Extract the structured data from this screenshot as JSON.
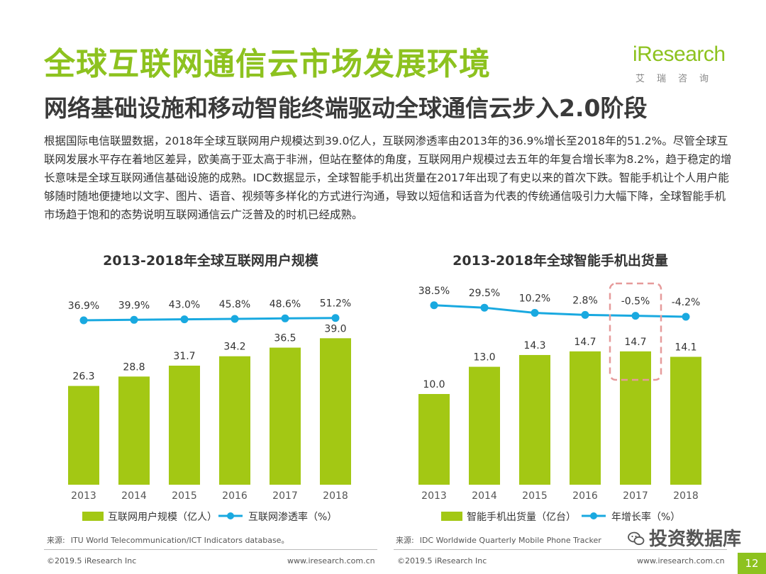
{
  "header": {
    "title": "全球互联网通信云市场发展环境",
    "subtitle": "网络基础设施和移动智能终端驱动全球通信云步入2.0阶段",
    "logo": "iResearch",
    "logo_sub": "艾瑞咨询"
  },
  "intro": "根据国际电信联盟数据，2018年全球互联网用户规模达到39.0亿人，互联网渗透率由2013年的36.9%增长至2018年的51.2%。尽管全球互联网发展水平存在着地区差异，欧美高于亚太高于非洲，但站在整体的角度，互联网用户规模过去五年的年复合增长率为8.2%，趋于稳定的增长意味是全球互联网通信基础设施的成熟。IDC数据显示，全球智能手机出货量在2017年出现了有史以来的首次下跌。智能手机让个人用户能够随时随地便捷地以文字、图片、语音、视频等多样化的方式进行沟通，导致以短信和话音为代表的传统通信吸引力大幅下降，全球智能手机市场趋于饱和的态势说明互联网通信云广泛普及的时机已经成熟。",
  "chart_data": [
    {
      "type": "bar",
      "title": "2013-2018年全球互联网用户规模",
      "categories": [
        "2013",
        "2014",
        "2015",
        "2016",
        "2017",
        "2018"
      ],
      "series": [
        {
          "name": "互联网用户规模（亿人）",
          "type": "bar",
          "values": [
            26.3,
            28.8,
            31.7,
            34.2,
            36.5,
            39.0
          ],
          "value_labels": [
            "26.3",
            "28.8",
            "31.7",
            "34.2",
            "36.5",
            "39.0"
          ],
          "color": "#a3c814"
        },
        {
          "name": "互联网渗透率（%）",
          "type": "line",
          "values": [
            36.9,
            39.9,
            43.0,
            45.8,
            48.6,
            51.2
          ],
          "value_labels": [
            "36.9%",
            "39.9%",
            "43.0%",
            "45.8%",
            "48.6%",
            "51.2%"
          ],
          "color": "#19a9e0"
        }
      ],
      "source": "ITU World Telecommunication/ICT Indicators database。",
      "source_label": "来源:",
      "copyright": "©2019.5 iResearch Inc",
      "website": "www.iresearch.com.cn"
    },
    {
      "type": "bar",
      "title": "2013-2018年全球智能手机出货量",
      "categories": [
        "2013",
        "2014",
        "2015",
        "2016",
        "2017",
        "2018"
      ],
      "series": [
        {
          "name": "智能手机出货量（亿台）",
          "type": "bar",
          "values": [
            10.0,
            13.0,
            14.3,
            14.7,
            14.7,
            14.1
          ],
          "value_labels": [
            "10.0",
            "13.0",
            "14.3",
            "14.7",
            "14.7",
            "14.1"
          ],
          "color": "#a3c814"
        },
        {
          "name": "年增长率（%）",
          "type": "line",
          "values": [
            38.5,
            29.5,
            10.2,
            2.8,
            -0.5,
            -4.2
          ],
          "value_labels": [
            "38.5%",
            "29.5%",
            "10.2%",
            "2.8%",
            "-0.5%",
            "-4.2%"
          ],
          "color": "#19a9e0"
        }
      ],
      "highlight_category": "2017",
      "source": "IDC Worldwide Quarterly Mobile Phone Tracker",
      "source_label": "来源:",
      "copyright": "©2019.5 iResearch Inc",
      "website": "www.iresearch.com.cn"
    }
  ],
  "watermark": "投资数据库",
  "page_number": "12"
}
